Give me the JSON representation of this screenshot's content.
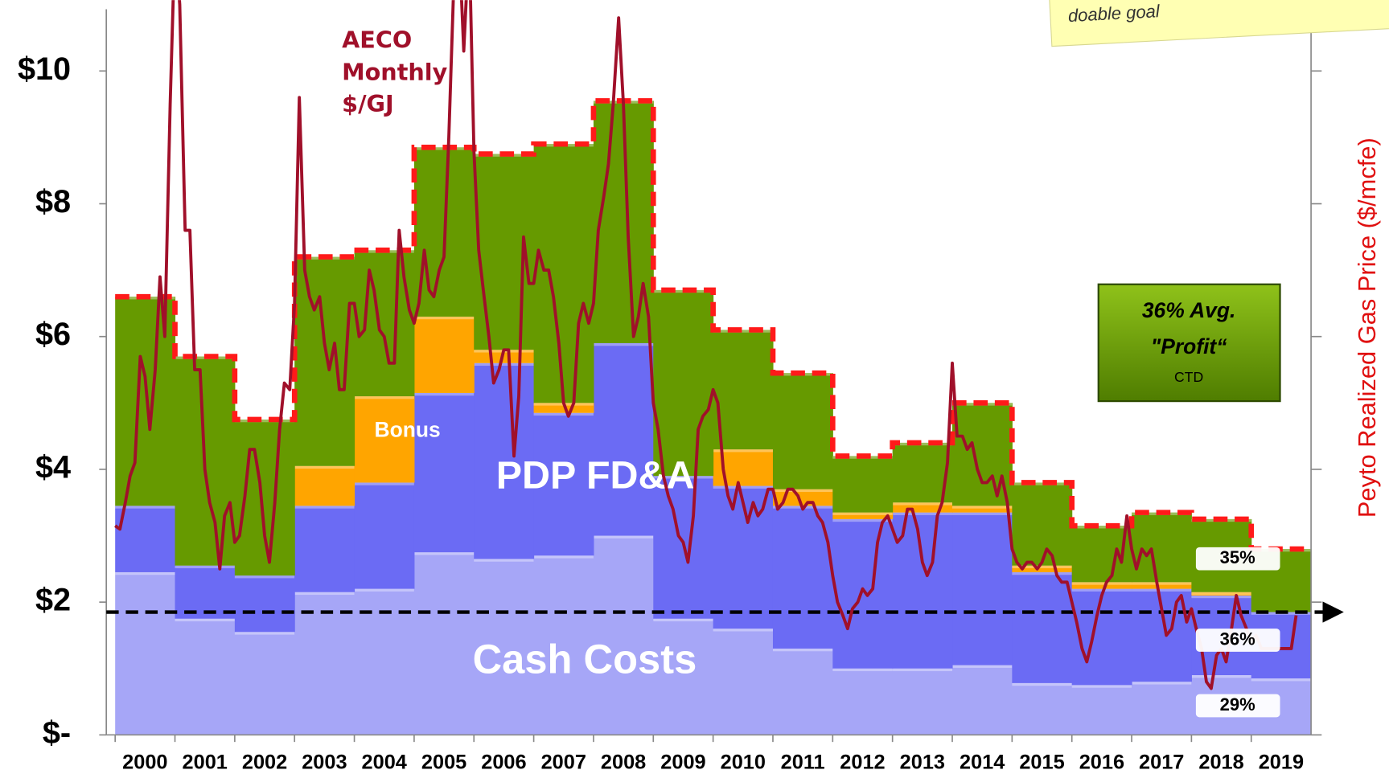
{
  "chart_data": {
    "type": "stacked_step_area",
    "categories": [
      "2000",
      "2001",
      "2002",
      "2003",
      "2004",
      "2005",
      "2006",
      "2007",
      "2008",
      "2009",
      "2010",
      "2011",
      "2012",
      "2013",
      "2014",
      "2015",
      "2016",
      "2017",
      "2018",
      "2019"
    ],
    "series": [
      {
        "name": "Cash Costs",
        "color": "#a6a6f7",
        "values": [
          2.45,
          1.75,
          1.55,
          2.15,
          2.2,
          2.75,
          2.65,
          2.7,
          3.0,
          1.75,
          1.6,
          1.3,
          1.0,
          1.0,
          1.05,
          0.78,
          0.75,
          0.8,
          0.9,
          0.85
        ]
      },
      {
        "name": "PDP FD&A",
        "color": "#6b6bf4",
        "values": [
          1.0,
          0.8,
          0.85,
          1.3,
          1.6,
          2.4,
          2.95,
          2.15,
          2.9,
          2.15,
          2.15,
          2.15,
          2.25,
          2.35,
          2.3,
          1.67,
          1.45,
          1.4,
          1.2,
          1.0
        ]
      },
      {
        "name": "Bonus",
        "color": "#ffa500",
        "values": [
          0,
          0,
          0,
          0.6,
          1.3,
          1.15,
          0.2,
          0.15,
          0,
          0,
          0.55,
          0.25,
          0.1,
          0.15,
          0.1,
          0.1,
          0.1,
          0.1,
          0.05,
          0
        ]
      },
      {
        "color": "#669a00",
        "values": [
          3.15,
          3.15,
          2.35,
          3.15,
          2.2,
          2.55,
          2.95,
          3.9,
          3.65,
          2.8,
          1.8,
          1.75,
          0.85,
          0.9,
          1.55,
          1.25,
          0.85,
          1.05,
          1.1,
          0.95
        ]
      }
    ],
    "total_line_color": "#ff1a1a",
    "lines": [
      {
        "name": "AECO Monthly $/GJ",
        "color": "#a0102a",
        "x": [
          2000,
          2000.08,
          2000.17,
          2000.25,
          2000.33,
          2000.42,
          2000.5,
          2000.58,
          2000.67,
          2000.75,
          2000.83,
          2000.92,
          2001,
          2001.08,
          2001.17,
          2001.25,
          2001.33,
          2001.42,
          2001.5,
          2001.58,
          2001.67,
          2001.75,
          2001.83,
          2001.92,
          2002,
          2002.08,
          2002.17,
          2002.25,
          2002.33,
          2002.42,
          2002.5,
          2002.58,
          2002.67,
          2002.75,
          2002.83,
          2002.92,
          2003,
          2003.08,
          2003.17,
          2003.25,
          2003.33,
          2003.42,
          2003.5,
          2003.58,
          2003.67,
          2003.75,
          2003.83,
          2003.92,
          2004,
          2004.08,
          2004.17,
          2004.25,
          2004.33,
          2004.42,
          2004.5,
          2004.58,
          2004.67,
          2004.75,
          2004.83,
          2004.92,
          2005,
          2005.08,
          2005.17,
          2005.25,
          2005.33,
          2005.42,
          2005.5,
          2005.58,
          2005.67,
          2005.75,
          2005.83,
          2005.92,
          2006,
          2006.08,
          2006.17,
          2006.25,
          2006.33,
          2006.42,
          2006.5,
          2006.58,
          2006.67,
          2006.75,
          2006.83,
          2006.92,
          2007,
          2007.08,
          2007.17,
          2007.25,
          2007.33,
          2007.42,
          2007.5,
          2007.58,
          2007.67,
          2007.75,
          2007.83,
          2007.92,
          2008,
          2008.08,
          2008.17,
          2008.25,
          2008.33,
          2008.42,
          2008.5,
          2008.58,
          2008.67,
          2008.75,
          2008.83,
          2008.92,
          2009,
          2009.08,
          2009.17,
          2009.25,
          2009.33,
          2009.42,
          2009.5,
          2009.58,
          2009.67,
          2009.75,
          2009.83,
          2009.92,
          2010,
          2010.08,
          2010.17,
          2010.25,
          2010.33,
          2010.42,
          2010.5,
          2010.58,
          2010.67,
          2010.75,
          2010.83,
          2010.92,
          2011,
          2011.08,
          2011.17,
          2011.25,
          2011.33,
          2011.42,
          2011.5,
          2011.58,
          2011.67,
          2011.75,
          2011.83,
          2011.92,
          2012,
          2012.08,
          2012.17,
          2012.25,
          2012.33,
          2012.42,
          2012.5,
          2012.58,
          2012.67,
          2012.75,
          2012.83,
          2012.92,
          2013,
          2013.08,
          2013.17,
          2013.25,
          2013.33,
          2013.42,
          2013.5,
          2013.58,
          2013.67,
          2013.75,
          2013.83,
          2013.92,
          2014,
          2014.08,
          2014.17,
          2014.25,
          2014.33,
          2014.42,
          2014.5,
          2014.58,
          2014.67,
          2014.75,
          2014.83,
          2014.92,
          2015,
          2015.08,
          2015.17,
          2015.25,
          2015.33,
          2015.42,
          2015.5,
          2015.58,
          2015.67,
          2015.75,
          2015.83,
          2015.92,
          2016,
          2016.08,
          2016.17,
          2016.25,
          2016.33,
          2016.42,
          2016.5,
          2016.58,
          2016.67,
          2016.75,
          2016.83,
          2016.92,
          2017,
          2017.08,
          2017.17,
          2017.25,
          2017.33,
          2017.42,
          2017.5,
          2017.58,
          2017.67,
          2017.75,
          2017.83,
          2017.92,
          2018,
          2018.08,
          2018.17,
          2018.25,
          2018.33,
          2018.42,
          2018.5,
          2018.58,
          2018.67,
          2018.75,
          2018.83,
          2018.92,
          2019,
          2019.08,
          2019.17,
          2019.25,
          2019.33,
          2019.42,
          2019.5,
          2019.58,
          2019.67,
          2019.75
        ],
        "values": [
          3.15,
          3.1,
          3.5,
          3.9,
          4.1,
          5.7,
          5.4,
          4.6,
          5.5,
          6.9,
          6.0,
          9.5,
          12,
          11,
          7.6,
          7.6,
          5.5,
          5.5,
          4.0,
          3.5,
          3.2,
          2.5,
          3.3,
          3.5,
          2.9,
          3.0,
          3.6,
          4.3,
          4.3,
          3.8,
          3.0,
          2.6,
          3.5,
          4.6,
          5.3,
          5.2,
          6.5,
          9.6,
          7.0,
          6.6,
          6.4,
          6.6,
          5.9,
          5.5,
          5.9,
          5.2,
          5.2,
          6.5,
          6.5,
          6.0,
          6.1,
          7.0,
          6.7,
          6.1,
          6.0,
          5.6,
          5.6,
          7.6,
          6.9,
          6.4,
          6.2,
          6.5,
          7.3,
          6.7,
          6.6,
          7.0,
          7.2,
          9.0,
          11.5,
          12,
          10.3,
          12,
          8.8,
          7.3,
          6.6,
          6.0,
          5.3,
          5.5,
          5.8,
          5.8,
          4.2,
          5.1,
          7.5,
          6.8,
          6.8,
          7.3,
          7.0,
          7.0,
          6.6,
          5.9,
          5.0,
          4.8,
          5.0,
          6.2,
          6.5,
          6.2,
          6.5,
          7.6,
          8.1,
          8.6,
          9.5,
          10.8,
          9.5,
          7.5,
          6.0,
          6.3,
          6.8,
          6.3,
          5.0,
          4.6,
          3.9,
          3.6,
          3.4,
          3.0,
          2.9,
          2.6,
          3.3,
          4.6,
          4.8,
          4.9,
          5.2,
          5.0,
          4.0,
          3.6,
          3.4,
          3.8,
          3.5,
          3.2,
          3.5,
          3.3,
          3.4,
          3.7,
          3.7,
          3.4,
          3.5,
          3.7,
          3.7,
          3.6,
          3.4,
          3.5,
          3.5,
          3.3,
          3.2,
          2.9,
          2.4,
          2.0,
          1.8,
          1.6,
          1.9,
          2.0,
          2.2,
          2.1,
          2.2,
          2.9,
          3.2,
          3.3,
          3.1,
          2.9,
          3.0,
          3.4,
          3.4,
          3.1,
          2.6,
          2.4,
          2.6,
          3.3,
          3.5,
          4.1,
          5.6,
          4.5,
          4.5,
          4.3,
          4.4,
          4.0,
          3.8,
          3.8,
          3.9,
          3.6,
          3.9,
          3.5,
          2.8,
          2.6,
          2.5,
          2.6,
          2.6,
          2.5,
          2.6,
          2.8,
          2.7,
          2.4,
          2.3,
          2.3,
          2.0,
          1.7,
          1.3,
          1.1,
          1.4,
          1.8,
          2.1,
          2.3,
          2.4,
          2.8,
          2.6,
          3.3,
          2.8,
          2.5,
          2.8,
          2.7,
          2.8,
          2.3,
          1.9,
          1.5,
          1.6,
          2.0,
          2.1,
          1.7,
          1.9,
          1.6,
          1.3,
          0.8,
          0.7,
          1.2,
          1.3,
          1.1,
          1.6,
          2.1,
          1.8,
          1.6,
          1.4,
          1.5,
          1.3,
          1.3,
          1.3,
          1.3,
          1.3,
          1.3,
          1.3,
          1.8
        ]
      }
    ],
    "xlim": [
      2000,
      2020
    ],
    "ylim": [
      0,
      10.93
    ],
    "yticks": [
      {
        "value": 0,
        "label": "$-"
      },
      {
        "value": 2,
        "label": "$2"
      },
      {
        "value": 4,
        "label": "$4"
      },
      {
        "value": 6,
        "label": "$6"
      },
      {
        "value": 8,
        "label": "$8"
      },
      {
        "value": 10,
        "label": "$10"
      }
    ],
    "y_axis_label_right": "Peyto Realized Gas Price ($/mcfe)",
    "target": 1.85,
    "profit_box": {
      "line1": "36% Avg.",
      "line2": "\"Profit“",
      "line3": "CTD"
    },
    "shares": {
      "values": [
        35,
        36,
        29
      ],
      "value_labels": [
        "35%",
        "36%",
        "29%"
      ]
    },
    "note": "doable goal"
  }
}
